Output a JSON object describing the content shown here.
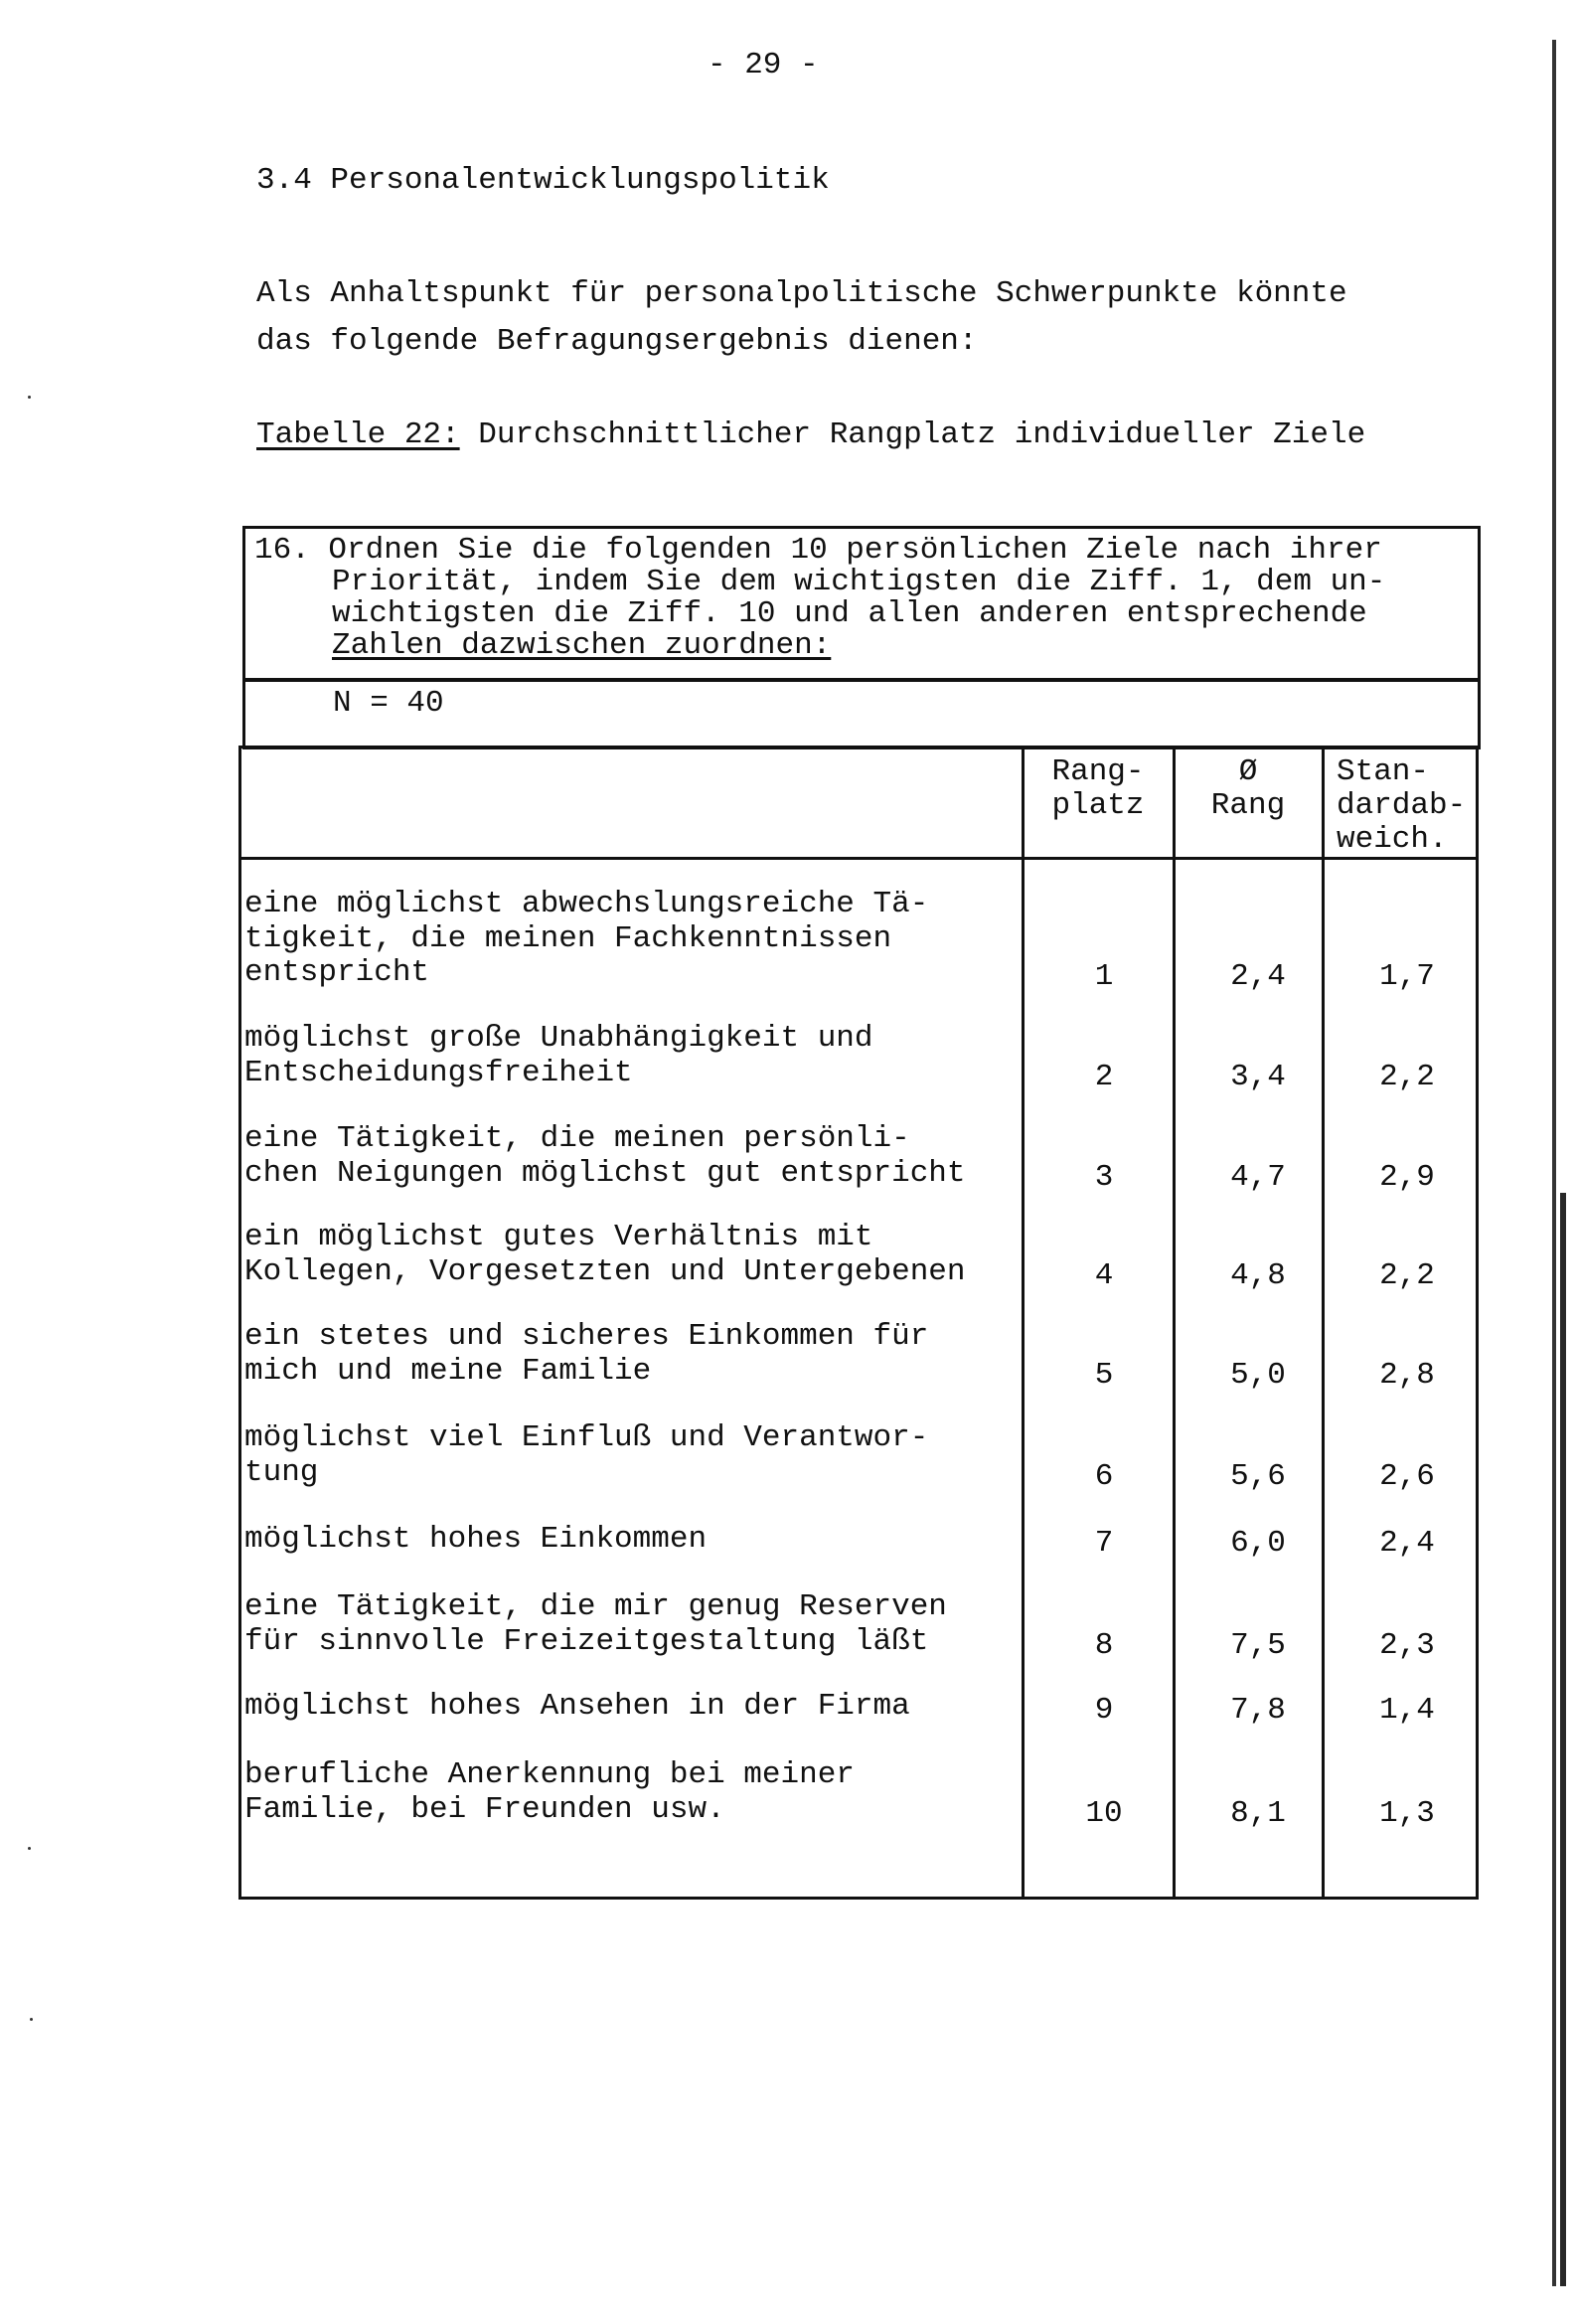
{
  "page_number": "- 29 -",
  "section_heading": "3.4 Personalentwicklungspolitik",
  "intro_lines": [
    "Als Anhaltspunkt für personalpolitische Schwerpunkte könnte",
    "das folgende Befragungsergebnis dienen:"
  ],
  "caption": {
    "label": "Tabelle 22:",
    "title": " Durchschnittlicher Rangplatz individueller Ziele"
  },
  "table": {
    "question_number": "16.",
    "question_lines": [
      "Ordnen Sie die folgenden 10 persönlichen Ziele nach ihrer",
      "Priorität, indem Sie dem wichtigsten die Ziff. 1, dem un-",
      "wichtigsten die Ziff. 10 und allen anderen entsprechende",
      "Zahlen dazwischen zuordnen:"
    ],
    "n": "N = 40",
    "headers": [
      "Rang-\nplatz",
      "Ø\nRang",
      "Stan-\ndardab-\nweich."
    ],
    "rows": [
      {
        "goal": "eine möglichst abwechslungsreiche Tä-\ntigkeit, die meinen Fachkenntnissen\nentspricht",
        "rank": "1",
        "mean_rank": "2,4",
        "std_dev": "1,7"
      },
      {
        "goal": "möglichst große Unabhängigkeit und\nEntscheidungsfreiheit",
        "rank": "2",
        "mean_rank": "3,4",
        "std_dev": "2,2"
      },
      {
        "goal": "eine Tätigkeit, die meinen persönli-\nchen Neigungen möglichst gut entspricht",
        "rank": "3",
        "mean_rank": "4,7",
        "std_dev": "2,9"
      },
      {
        "goal": "ein möglichst gutes Verhältnis mit\nKollegen, Vorgesetzten und Untergebenen",
        "rank": "4",
        "mean_rank": "4,8",
        "std_dev": "2,2"
      },
      {
        "goal": "ein stetes und sicheres Einkommen für\nmich und meine Familie",
        "rank": "5",
        "mean_rank": "5,0",
        "std_dev": "2,8"
      },
      {
        "goal": "möglichst viel Einfluß und Verantwor-\ntung",
        "rank": "6",
        "mean_rank": "5,6",
        "std_dev": "2,6"
      },
      {
        "goal": "möglichst hohes Einkommen",
        "rank": "7",
        "mean_rank": "6,0",
        "std_dev": "2,4"
      },
      {
        "goal": "eine Tätigkeit, die mir genug Reserven\nfür sinnvolle Freizeitgestaltung läßt",
        "rank": "8",
        "mean_rank": "7,5",
        "std_dev": "2,3"
      },
      {
        "goal": "möglichst hohes Ansehen in der Firma",
        "rank": "9",
        "mean_rank": "7,8",
        "std_dev": "1,4"
      },
      {
        "goal": "berufliche Anerkennung bei meiner\nFamilie, bei Freunden usw.",
        "rank": "10",
        "mean_rank": "8,1",
        "std_dev": "1,3"
      }
    ]
  }
}
